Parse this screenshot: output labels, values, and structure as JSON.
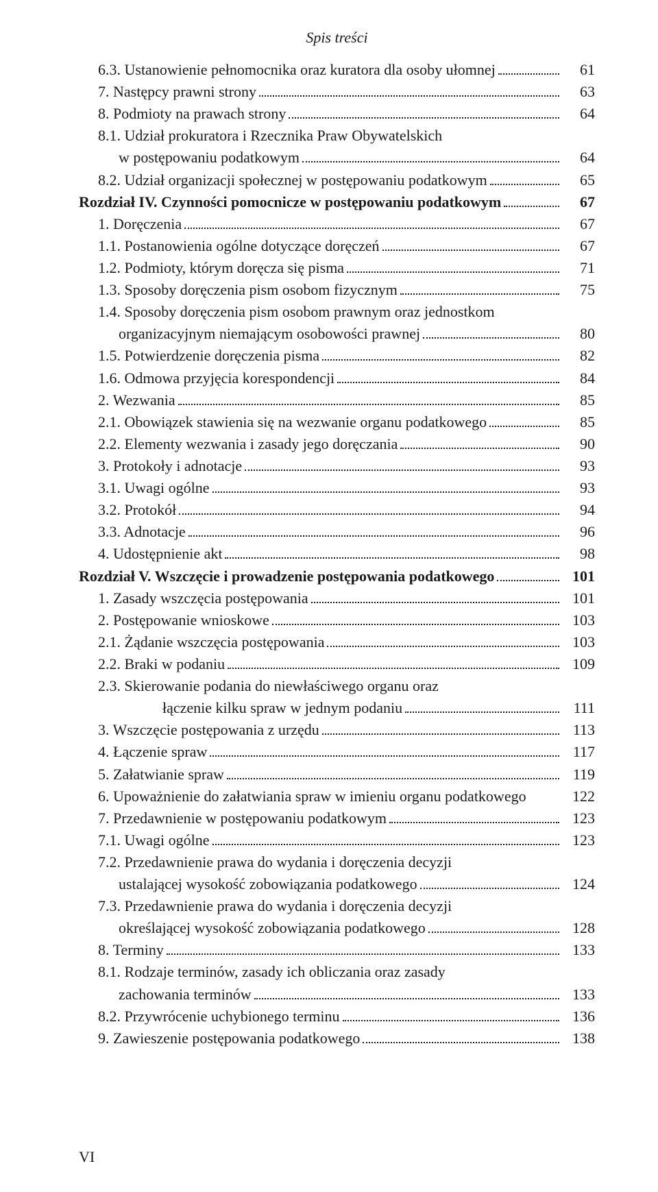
{
  "header": "Spis treści",
  "pageNumber": "VI",
  "entries": [
    {
      "indent": 1,
      "bold": false,
      "text": "6.3. Ustanowienie pełnomocnika oraz kuratora dla osoby ułomnej",
      "page": "61"
    },
    {
      "indent": 1,
      "bold": false,
      "text": "7. Następcy prawni strony",
      "page": "63"
    },
    {
      "indent": 1,
      "bold": false,
      "text": "8. Podmioty na prawach strony",
      "page": "64"
    },
    {
      "indent": 1,
      "bold": false,
      "text": "8.1. Udział prokuratora i Rzecznika Praw Obywatelskich",
      "page": null
    },
    {
      "indent": 2,
      "bold": false,
      "text": "w postępowaniu podatkowym",
      "page": "64"
    },
    {
      "indent": 1,
      "bold": false,
      "text": "8.2. Udział organizacji społecznej w postępowaniu podatkowym",
      "page": "65"
    },
    {
      "indent": 0,
      "bold": true,
      "text": "Rozdział IV. Czynności pomocnicze w postępowaniu podatkowym",
      "page": "67"
    },
    {
      "indent": 1,
      "bold": false,
      "text": "1. Doręczenia",
      "page": "67"
    },
    {
      "indent": 1,
      "bold": false,
      "text": "1.1. Postanowienia ogólne dotyczące doręczeń",
      "page": "67"
    },
    {
      "indent": 1,
      "bold": false,
      "text": "1.2. Podmioty, którym doręcza się pisma",
      "page": "71"
    },
    {
      "indent": 1,
      "bold": false,
      "text": "1.3. Sposoby doręczenia pism osobom fizycznym",
      "page": "75"
    },
    {
      "indent": 1,
      "bold": false,
      "text": "1.4. Sposoby doręczenia pism osobom prawnym oraz jednostkom",
      "page": null
    },
    {
      "indent": 2,
      "bold": false,
      "text": "organizacyjnym niemającym osobowości prawnej",
      "page": "80"
    },
    {
      "indent": 1,
      "bold": false,
      "text": "1.5. Potwierdzenie doręczenia pisma",
      "page": "82"
    },
    {
      "indent": 1,
      "bold": false,
      "text": "1.6. Odmowa przyjęcia korespondencji",
      "page": "84"
    },
    {
      "indent": 1,
      "bold": false,
      "text": "2. Wezwania",
      "page": "85"
    },
    {
      "indent": 1,
      "bold": false,
      "text": "2.1. Obowiązek stawienia się na wezwanie organu podatkowego",
      "page": "85"
    },
    {
      "indent": 1,
      "bold": false,
      "text": "2.2. Elementy wezwania i zasady jego doręczania",
      "page": "90"
    },
    {
      "indent": 1,
      "bold": false,
      "text": "3. Protokoły i adnotacje",
      "page": "93"
    },
    {
      "indent": 1,
      "bold": false,
      "text": "3.1. Uwagi ogólne",
      "page": "93"
    },
    {
      "indent": 1,
      "bold": false,
      "text": "3.2. Protokół",
      "page": "94"
    },
    {
      "indent": 1,
      "bold": false,
      "text": "3.3. Adnotacje",
      "page": "96"
    },
    {
      "indent": 1,
      "bold": false,
      "text": "4. Udostępnienie akt",
      "page": "98"
    },
    {
      "indent": 0,
      "bold": true,
      "text": "Rozdział V. Wszczęcie i prowadzenie postępowania podatkowego",
      "page": "101"
    },
    {
      "indent": 1,
      "bold": false,
      "text": "1. Zasady wszczęcia postępowania",
      "page": "101"
    },
    {
      "indent": 1,
      "bold": false,
      "text": "2. Postępowanie wnioskowe",
      "page": "103"
    },
    {
      "indent": 1,
      "bold": false,
      "text": "2.1. Żądanie wszczęcia postępowania",
      "page": "103"
    },
    {
      "indent": 1,
      "bold": false,
      "text": "2.2. Braki w podaniu",
      "page": "109"
    },
    {
      "indent": 1,
      "bold": false,
      "text": "2.3. Skierowanie podania do niewłaściwego organu oraz",
      "page": null
    },
    {
      "indent": 3,
      "bold": false,
      "text": "łączenie kilku spraw w jednym podaniu",
      "page": "111"
    },
    {
      "indent": 1,
      "bold": false,
      "text": "3. Wszczęcie postępowania z urzędu",
      "page": "113"
    },
    {
      "indent": 1,
      "bold": false,
      "text": "4. Łączenie spraw",
      "page": "117"
    },
    {
      "indent": 1,
      "bold": false,
      "text": "5. Załatwianie spraw",
      "page": "119"
    },
    {
      "indent": 1,
      "bold": false,
      "text": "6. Upoważnienie do załatwiania spraw w imieniu organu podatkowego",
      "page": "122",
      "noleader": true
    },
    {
      "indent": 1,
      "bold": false,
      "text": "7. Przedawnienie w postępowaniu podatkowym",
      "page": "123"
    },
    {
      "indent": 1,
      "bold": false,
      "text": "7.1. Uwagi ogólne",
      "page": "123"
    },
    {
      "indent": 1,
      "bold": false,
      "text": "7.2. Przedawnienie prawa do wydania i doręczenia decyzji",
      "page": null
    },
    {
      "indent": 2,
      "bold": false,
      "text": "ustalającej wysokość zobowiązania podatkowego",
      "page": "124"
    },
    {
      "indent": 1,
      "bold": false,
      "text": "7.3. Przedawnienie prawa do wydania i doręczenia decyzji",
      "page": null
    },
    {
      "indent": 2,
      "bold": false,
      "text": "określającej wysokość zobowiązania podatkowego",
      "page": "128"
    },
    {
      "indent": 1,
      "bold": false,
      "text": "8. Terminy",
      "page": "133"
    },
    {
      "indent": 1,
      "bold": false,
      "text": "8.1. Rodzaje terminów, zasady ich obliczania oraz zasady",
      "page": null
    },
    {
      "indent": 2,
      "bold": false,
      "text": "zachowania terminów",
      "page": "133"
    },
    {
      "indent": 1,
      "bold": false,
      "text": "8.2. Przywrócenie uchybionego terminu",
      "page": "136"
    },
    {
      "indent": 1,
      "bold": false,
      "text": "9. Zawieszenie postępowania podatkowego",
      "page": "138"
    }
  ]
}
